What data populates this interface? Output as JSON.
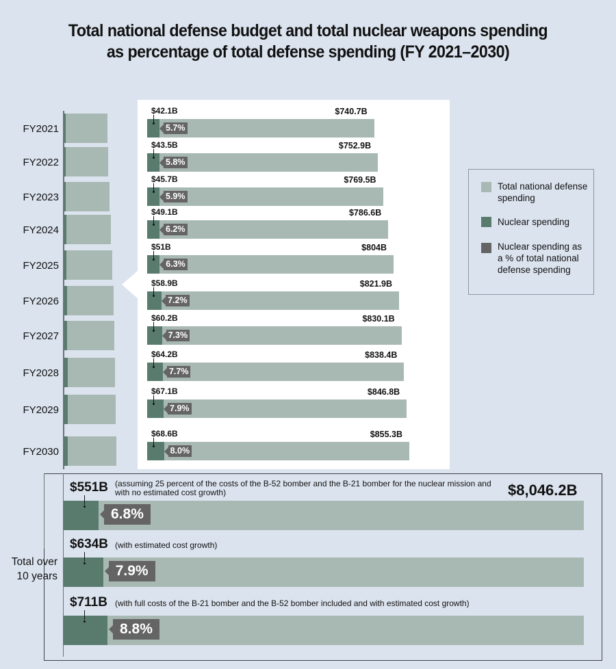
{
  "chart_data": {
    "type": "bar",
    "orientation": "horizontal",
    "title": "Total national defense budget and total nuclear weapons spending as percentage of total defense spending (FY 2021–2030)",
    "title_lines": [
      "Total national defense budget and total nuclear weapons spending",
      "as percentage of total defense spending (FY 2021–2030)"
    ],
    "xlabel": "",
    "ylabel": "",
    "grid": false,
    "legend_position": "right",
    "categories": [
      "FY2021",
      "FY2022",
      "FY2023",
      "FY2024",
      "FY2025",
      "FY2026",
      "FY2027",
      "FY2028",
      "FY2029",
      "FY2030"
    ],
    "series": [
      {
        "name": "Total national defense spending",
        "unit": "billion USD",
        "color": "#a8b8b2",
        "values": [
          740.7,
          752.9,
          769.5,
          786.6,
          804,
          821.9,
          830.1,
          838.4,
          846.8,
          855.3
        ],
        "labels": [
          "$740.7B",
          "$752.9B",
          "$769.5B",
          "$786.6B",
          "$804B",
          "$821.9B",
          "$830.1B",
          "$838.4B",
          "$846.8B",
          "$855.3B"
        ]
      },
      {
        "name": "Nuclear spending",
        "unit": "billion USD",
        "color": "#587b6e",
        "values": [
          42.1,
          43.5,
          45.7,
          49.1,
          51,
          58.9,
          60.2,
          64.2,
          67.1,
          68.6
        ],
        "labels": [
          "$42.1B",
          "$43.5B",
          "$45.7B",
          "$49.1B",
          "$51B",
          "$58.9B",
          "$60.2B",
          "$64.2B",
          "$67.1B",
          "$68.6B"
        ]
      },
      {
        "name": "Nuclear spending as a % of total national defense spending",
        "unit": "percent",
        "color": "#646464",
        "values": [
          5.7,
          5.8,
          5.9,
          6.2,
          6.3,
          7.2,
          7.3,
          7.7,
          7.9,
          8.0
        ],
        "labels": [
          "5.7%",
          "5.8%",
          "5.9%",
          "6.2%",
          "6.3%",
          "7.2%",
          "7.3%",
          "7.7%",
          "7.9%",
          "8.0%"
        ]
      }
    ],
    "xlim": [
      0,
      900
    ],
    "legend": [
      {
        "label": "Total national defense spending",
        "color": "#a8b8b2"
      },
      {
        "label": "Nuclear spending",
        "color": "#587b6e"
      },
      {
        "label": "Nuclear spending as a % of total national defense spending",
        "color": "#646464"
      }
    ],
    "totals": {
      "side_label": "Total over 10 years",
      "total_defense": 8046.2,
      "total_defense_label": "$8,046.2B",
      "scenarios": [
        {
          "nuclear": 551,
          "nuclear_label": "$551B",
          "percent": 6.8,
          "percent_label": "6.8%",
          "note": "(assuming 25 percent of the costs of the B-52 bomber and the B-21 bomber for the nuclear mission and with no estimated cost growth)"
        },
        {
          "nuclear": 634,
          "nuclear_label": "$634B",
          "percent": 7.9,
          "percent_label": "7.9%",
          "note": "(with estimated cost growth)"
        },
        {
          "nuclear": 711,
          "nuclear_label": "$711B",
          "percent": 8.8,
          "percent_label": "8.8%",
          "note": "(with full costs of the B-21 bomber and the B-52 bomber included and with estimated cost growth)"
        }
      ]
    }
  }
}
